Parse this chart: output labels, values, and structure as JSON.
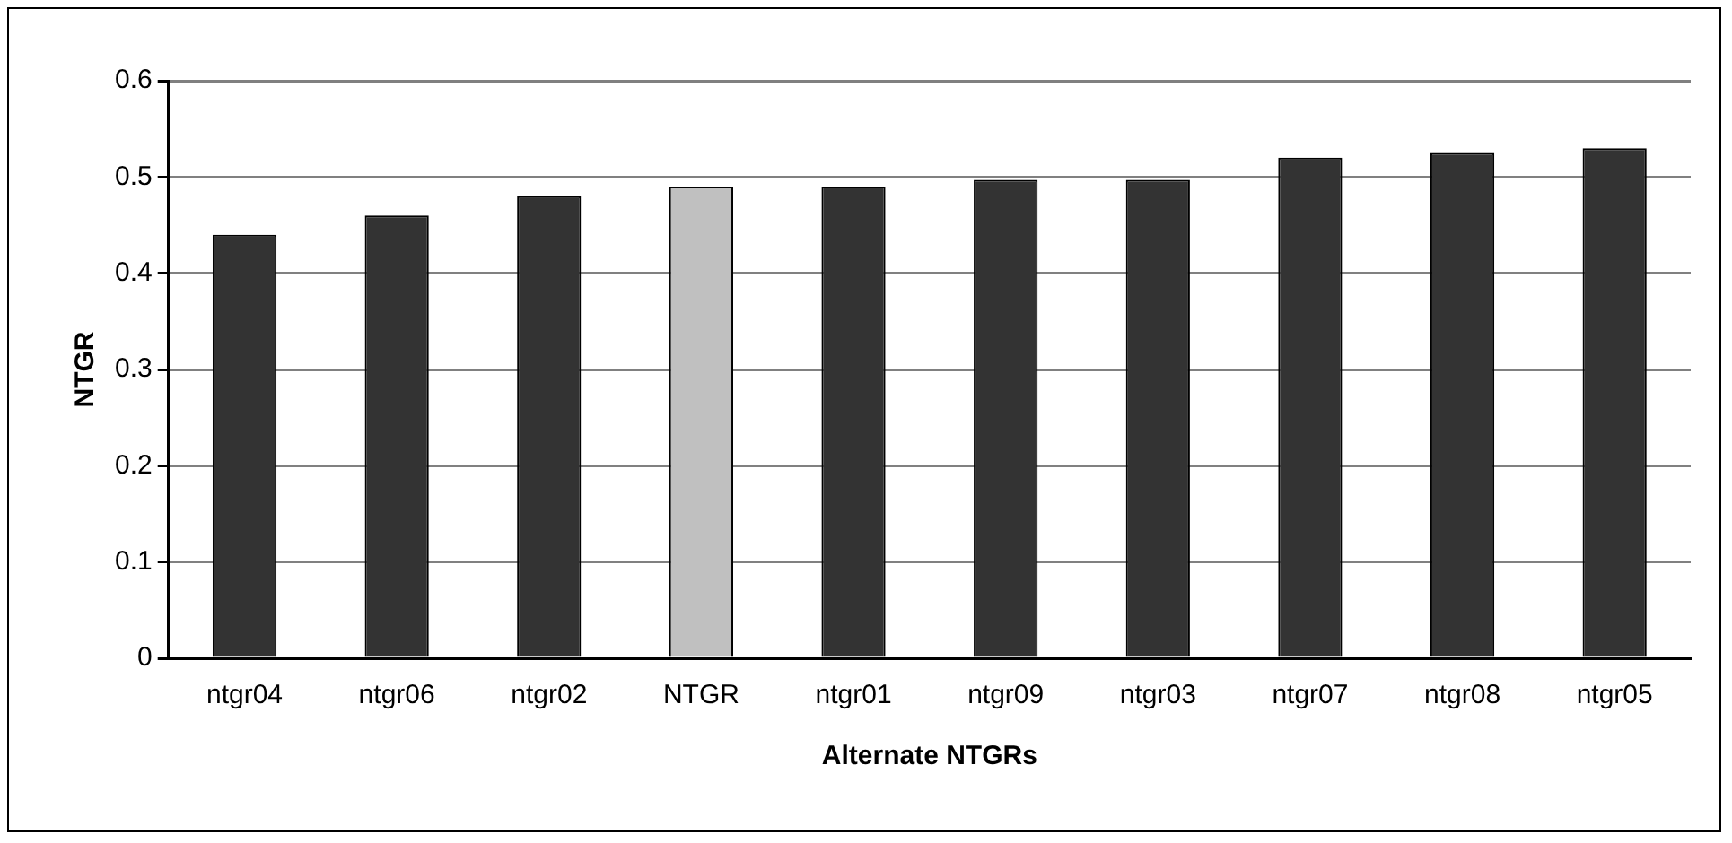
{
  "chart_data": {
    "type": "bar",
    "xlabel": "Alternate NTGRs",
    "ylabel": "NTGR",
    "categories": [
      "ntgr04",
      "ntgr06",
      "ntgr02",
      "NTGR",
      "ntgr01",
      "ntgr09",
      "ntgr03",
      "ntgr07",
      "ntgr08",
      "ntgr05"
    ],
    "values": [
      0.44,
      0.46,
      0.48,
      0.49,
      0.49,
      0.497,
      0.497,
      0.52,
      0.525,
      0.53
    ],
    "colors": [
      "#333333",
      "#333333",
      "#333333",
      "#c0c0c0",
      "#333333",
      "#333333",
      "#333333",
      "#333333",
      "#333333",
      "#333333"
    ],
    "ylim": [
      0,
      0.6
    ],
    "yticks": [
      0,
      0.1,
      0.2,
      0.3,
      0.4,
      0.5,
      0.6
    ],
    "grid": "y",
    "legend": false
  }
}
